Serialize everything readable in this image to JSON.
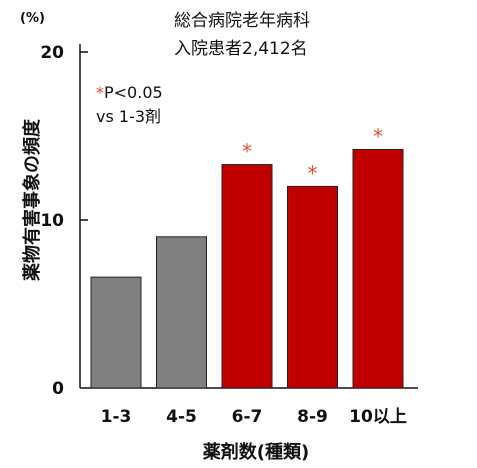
{
  "chart_data": {
    "type": "bar",
    "title": "総合病院老年病科",
    "subtitle": "入院患者2,412名",
    "xlabel": "薬剤数(種類)",
    "ylabel": "薬物有害事象の頻度",
    "y_unit": "(%)",
    "ylim": [
      0,
      20
    ],
    "yticks": [
      "0",
      "10",
      "20"
    ],
    "categories": [
      "1-3",
      "4-5",
      "6-7",
      "8-9",
      "10以上"
    ],
    "values": [
      6.6,
      9.0,
      13.3,
      12.0,
      14.2
    ],
    "significant": [
      false,
      false,
      true,
      true,
      true
    ],
    "significance_marker": "*",
    "significance_note": "P<0.05",
    "significance_comparison": "vs 1-3剤",
    "colors": {
      "reference": "#808080",
      "significant": "#c00000",
      "marker": "#e2502e"
    },
    "grid": false,
    "legend": "none"
  }
}
